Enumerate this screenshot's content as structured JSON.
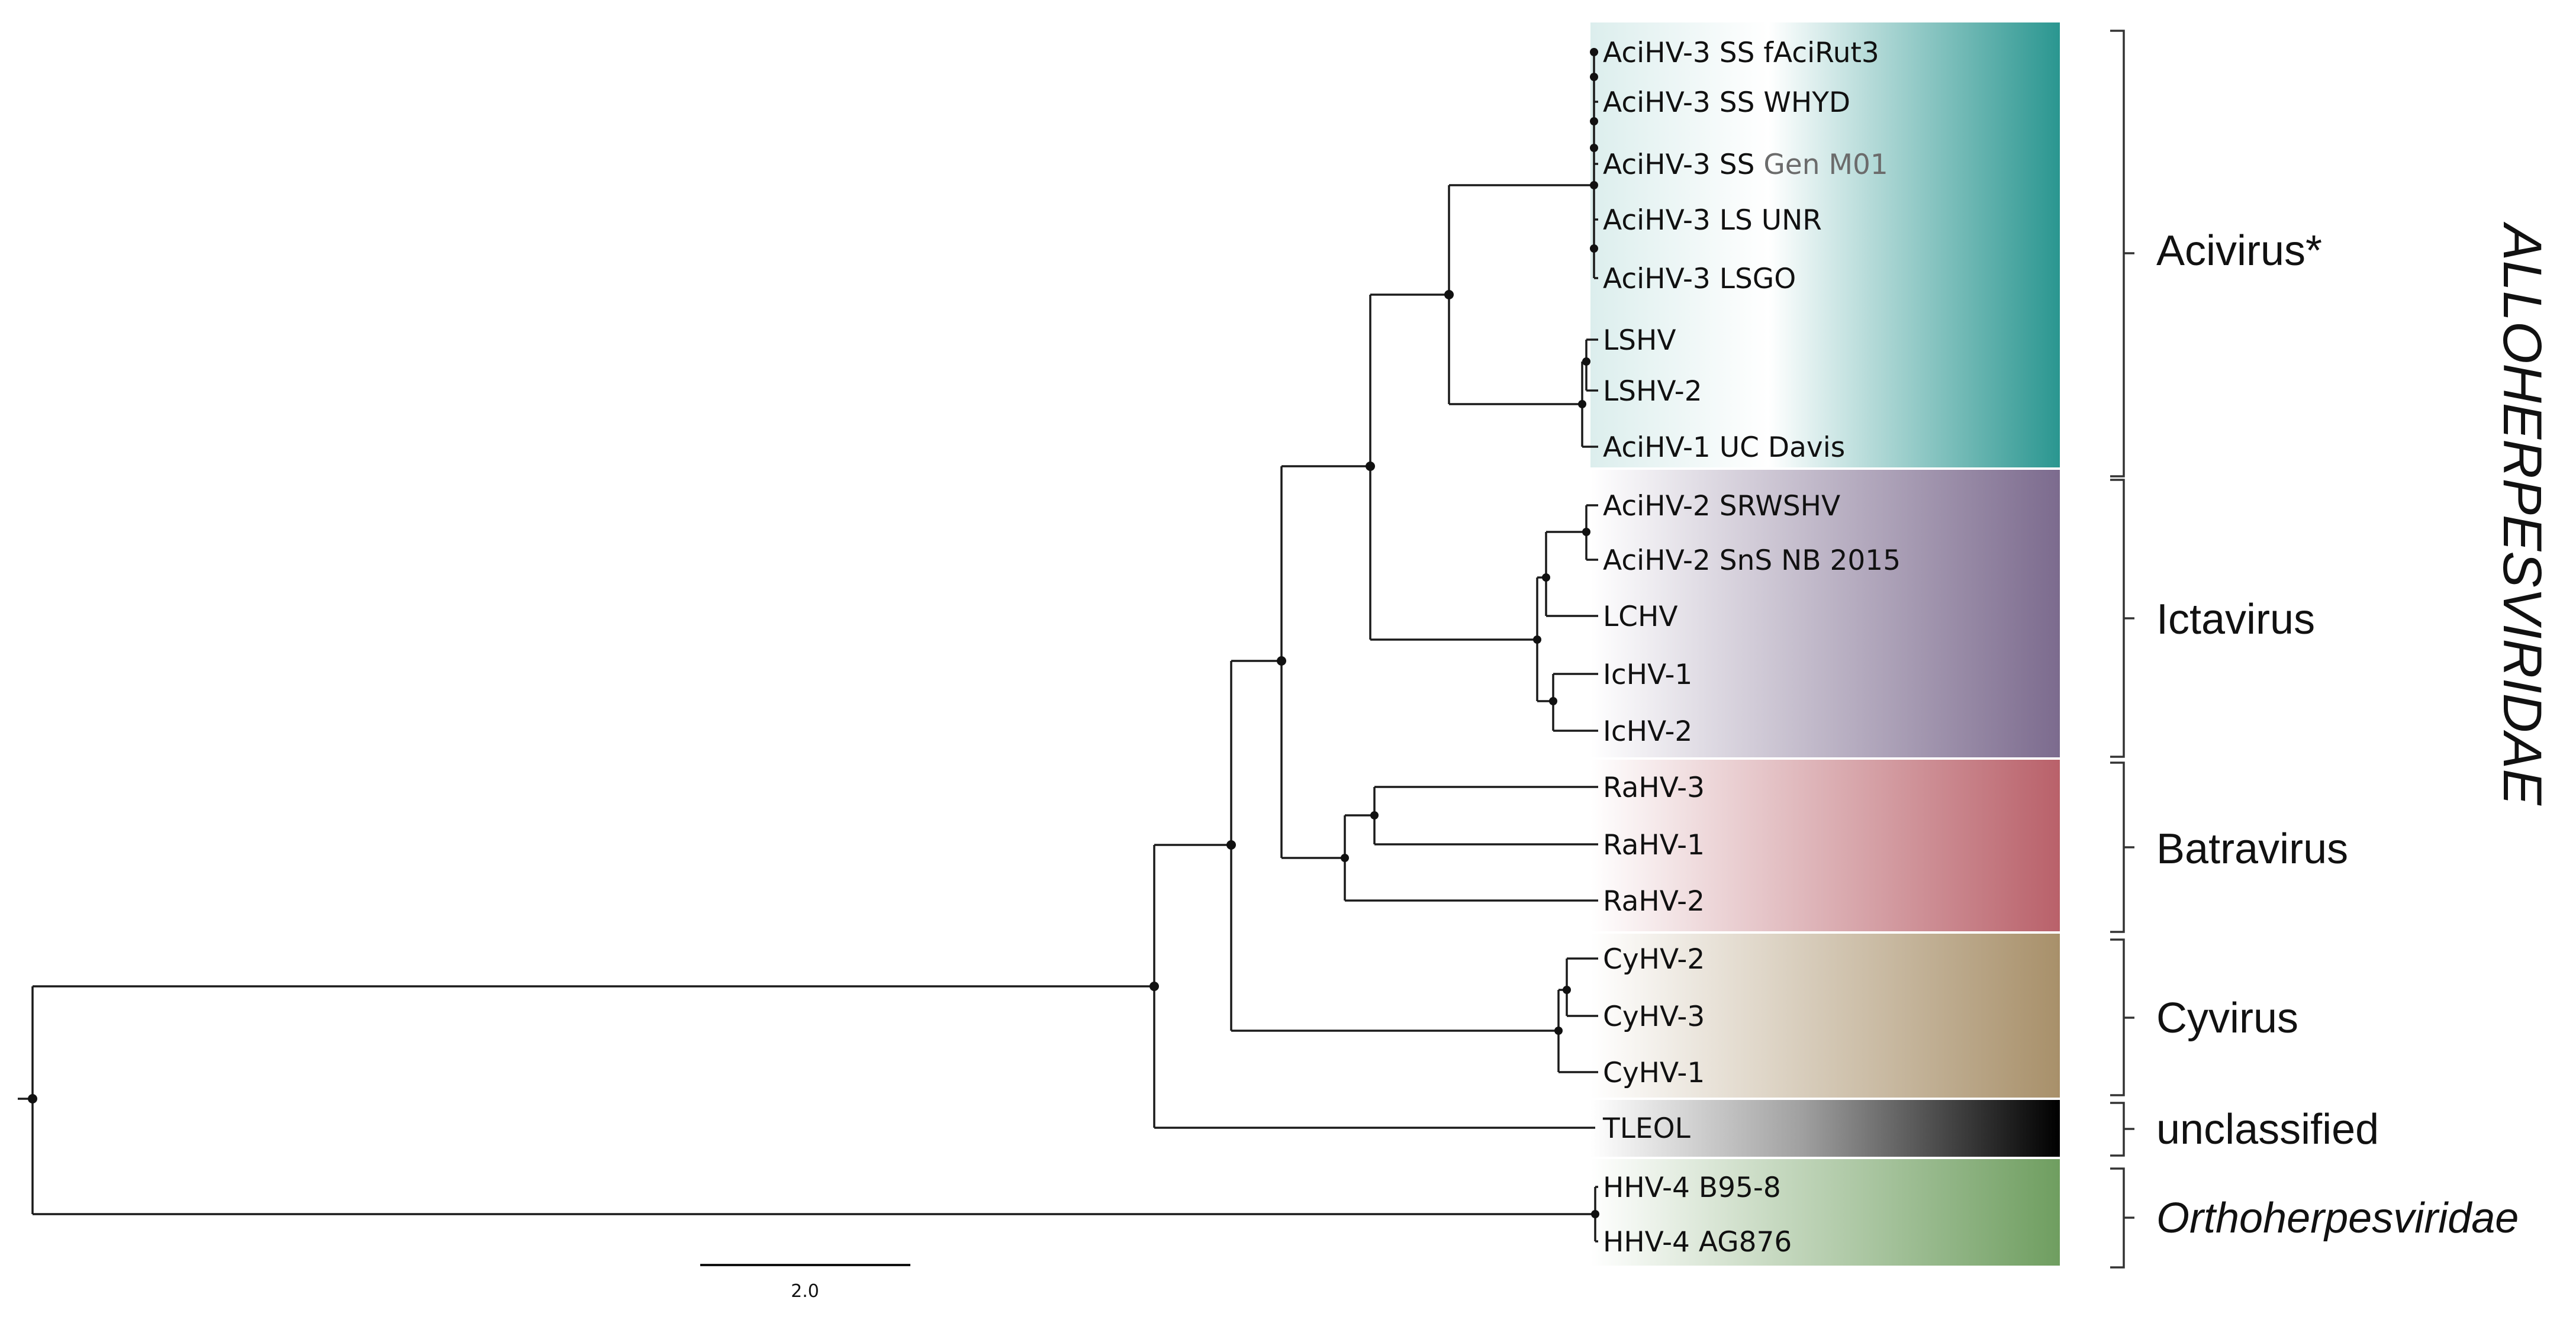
{
  "family_label": "ALLOHERPESVIRIDAE",
  "scale_bar": {
    "label": "2.0",
    "value": 2.0
  },
  "clades": [
    {
      "id": "acivirus",
      "label": "Acivirus*",
      "italic": false,
      "color": "#2a9690"
    },
    {
      "id": "ictavirus",
      "label": "Ictavirus",
      "italic": false,
      "color": "#7c6b8e"
    },
    {
      "id": "batravirus",
      "label": "Batravirus",
      "italic": false,
      "color": "#b9616a"
    },
    {
      "id": "cyvirus",
      "label": "Cyvirus",
      "italic": false,
      "color": "#a8906a"
    },
    {
      "id": "unclassified",
      "label": "unclassified",
      "italic": false,
      "color": "#000000"
    },
    {
      "id": "orthoherpesviridae",
      "label": "Orthoherpesviridae",
      "italic": true,
      "color": "#6f9e60"
    }
  ],
  "taxa": [
    {
      "label": "AciHV-3 SS fAciRut3",
      "clade": "acivirus"
    },
    {
      "label": "AciHV-3 SS WHYD",
      "clade": "acivirus"
    },
    {
      "label": "AciHV-3 SS",
      "label_suffix": " Gen M01",
      "clade": "acivirus"
    },
    {
      "label": "AciHV-3 LS UNR",
      "clade": "acivirus"
    },
    {
      "label": "AciHV-3 LSGO",
      "clade": "acivirus"
    },
    {
      "label": "LSHV",
      "clade": "acivirus"
    },
    {
      "label": "LSHV-2",
      "clade": "acivirus"
    },
    {
      "label": "AciHV-1 UC Davis",
      "clade": "acivirus"
    },
    {
      "label": "AciHV-2 SRWSHV",
      "clade": "ictavirus"
    },
    {
      "label": "AciHV-2 SnS NB 2015",
      "clade": "ictavirus"
    },
    {
      "label": "LCHV",
      "clade": "ictavirus"
    },
    {
      "label": "IcHV-1",
      "clade": "ictavirus"
    },
    {
      "label": "IcHV-2",
      "clade": "ictavirus"
    },
    {
      "label": "RaHV-3",
      "clade": "batravirus"
    },
    {
      "label": "RaHV-1",
      "clade": "batravirus"
    },
    {
      "label": "RaHV-2",
      "clade": "batravirus"
    },
    {
      "label": "CyHV-2",
      "clade": "cyvirus"
    },
    {
      "label": "CyHV-3",
      "clade": "cyvirus"
    },
    {
      "label": "CyHV-1",
      "clade": "cyvirus"
    },
    {
      "label": "TLEOL",
      "clade": "unclassified"
    },
    {
      "label": "HHV-4 B95-8",
      "clade": "orthoherpesviridae"
    },
    {
      "label": "HHV-4 AG876",
      "clade": "orthoherpesviridae"
    }
  ]
}
